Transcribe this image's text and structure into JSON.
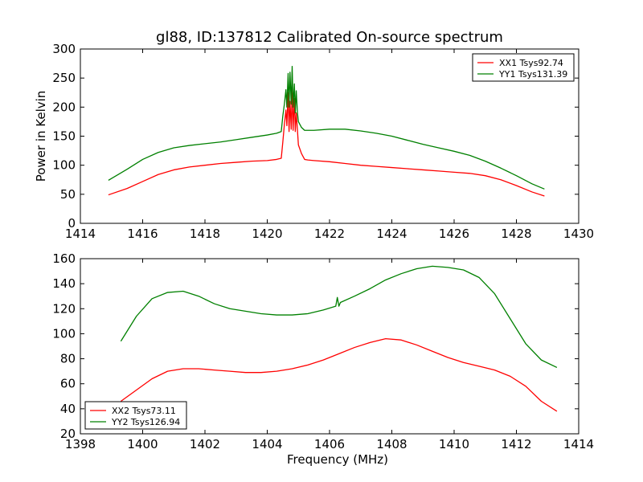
{
  "figure": {
    "title": "gl88, ID:137812 Calibrated On-source spectrum"
  },
  "chart_data": [
    {
      "type": "line",
      "title": "gl88, ID:137812 Calibrated On-source spectrum",
      "xlabel": "",
      "ylabel": "Power in Kelvin",
      "xlim": [
        1414,
        1430
      ],
      "ylim": [
        0,
        300
      ],
      "xticks": [
        1414,
        1416,
        1418,
        1420,
        1422,
        1424,
        1426,
        1428,
        1430
      ],
      "yticks": [
        0,
        50,
        100,
        150,
        200,
        250,
        300
      ],
      "legend_position": "top-right",
      "grid": false,
      "series": [
        {
          "name": "XX1 Tsys92.74",
          "color": "#ff0000",
          "x": [
            1414.9,
            1415.5,
            1416.0,
            1416.5,
            1417.0,
            1417.5,
            1418.0,
            1418.5,
            1419.0,
            1419.5,
            1420.0,
            1420.3,
            1420.45,
            1420.5,
            1420.55,
            1420.6,
            1420.63,
            1420.67,
            1420.7,
            1420.73,
            1420.77,
            1420.8,
            1420.83,
            1420.87,
            1420.9,
            1420.93,
            1420.97,
            1421.0,
            1421.1,
            1421.2,
            1421.3,
            1421.5,
            1422.0,
            1422.5,
            1423.0,
            1423.5,
            1424.0,
            1424.5,
            1425.0,
            1425.5,
            1426.0,
            1426.5,
            1427.0,
            1427.5,
            1428.0,
            1428.5,
            1428.9
          ],
          "y": [
            49,
            60,
            72,
            84,
            92,
            97,
            100,
            103,
            105,
            107,
            108,
            110,
            112,
            140,
            170,
            195,
            168,
            225,
            158,
            210,
            162,
            232,
            160,
            215,
            158,
            190,
            160,
            135,
            120,
            110,
            109,
            108,
            106,
            103,
            100,
            98,
            96,
            94,
            92,
            90,
            88,
            86,
            82,
            75,
            65,
            54,
            47
          ]
        },
        {
          "name": "YY1 Tsys131.39",
          "color": "#008000",
          "x": [
            1414.9,
            1415.5,
            1416.0,
            1416.5,
            1417.0,
            1417.5,
            1418.0,
            1418.5,
            1419.0,
            1419.5,
            1420.0,
            1420.3,
            1420.45,
            1420.5,
            1420.55,
            1420.6,
            1420.63,
            1420.67,
            1420.7,
            1420.73,
            1420.77,
            1420.8,
            1420.83,
            1420.87,
            1420.9,
            1420.93,
            1420.97,
            1421.0,
            1421.1,
            1421.2,
            1421.3,
            1421.5,
            1422.0,
            1422.5,
            1423.0,
            1423.5,
            1424.0,
            1424.5,
            1425.0,
            1425.5,
            1426.0,
            1426.5,
            1427.0,
            1427.5,
            1428.0,
            1428.5,
            1428.9
          ],
          "y": [
            74,
            93,
            110,
            122,
            130,
            134,
            137,
            140,
            144,
            148,
            152,
            155,
            158,
            185,
            205,
            230,
            200,
            258,
            200,
            260,
            205,
            270,
            200,
            240,
            190,
            228,
            190,
            175,
            165,
            160,
            160,
            160,
            162,
            162,
            159,
            155,
            150,
            143,
            136,
            130,
            124,
            117,
            107,
            95,
            82,
            68,
            59
          ]
        }
      ]
    },
    {
      "type": "line",
      "title": "",
      "xlabel": "Frequency (MHz)",
      "ylabel": "",
      "xlim": [
        1398,
        1414
      ],
      "ylim": [
        20,
        160
      ],
      "xticks": [
        1398,
        1400,
        1402,
        1404,
        1406,
        1408,
        1410,
        1412,
        1414
      ],
      "yticks": [
        20,
        40,
        60,
        80,
        100,
        120,
        140,
        160
      ],
      "legend_position": "bottom-left",
      "grid": false,
      "series": [
        {
          "name": "XX2 Tsys73.11",
          "color": "#ff0000",
          "x": [
            1399.3,
            1399.8,
            1400.3,
            1400.8,
            1401.3,
            1401.8,
            1402.3,
            1402.8,
            1403.3,
            1403.8,
            1404.3,
            1404.8,
            1405.3,
            1405.8,
            1406.3,
            1406.8,
            1407.3,
            1407.8,
            1408.3,
            1408.8,
            1409.3,
            1409.8,
            1410.3,
            1410.8,
            1411.3,
            1411.8,
            1412.3,
            1412.8,
            1413.3
          ],
          "y": [
            46,
            55,
            64,
            70,
            72,
            72,
            71,
            70,
            69,
            69,
            70,
            72,
            75,
            79,
            84,
            89,
            93,
            96,
            95,
            91,
            86,
            81,
            77,
            74,
            71,
            66,
            58,
            46,
            38
          ]
        },
        {
          "name": "YY2 Tsys126.94",
          "color": "#008000",
          "x": [
            1399.3,
            1399.8,
            1400.3,
            1400.8,
            1401.3,
            1401.8,
            1402.3,
            1402.8,
            1403.3,
            1403.8,
            1404.3,
            1404.8,
            1405.3,
            1405.8,
            1406.2,
            1406.25,
            1406.3,
            1406.35,
            1406.8,
            1407.3,
            1407.8,
            1408.3,
            1408.8,
            1409.3,
            1409.8,
            1410.3,
            1410.8,
            1411.3,
            1411.8,
            1412.3,
            1412.8,
            1413.3
          ],
          "y": [
            94,
            114,
            128,
            133,
            134,
            130,
            124,
            120,
            118,
            116,
            115,
            115,
            116,
            119,
            122,
            129,
            122,
            125,
            130,
            136,
            143,
            148,
            152,
            154,
            153,
            151,
            145,
            132,
            112,
            92,
            79,
            73
          ]
        }
      ]
    }
  ]
}
